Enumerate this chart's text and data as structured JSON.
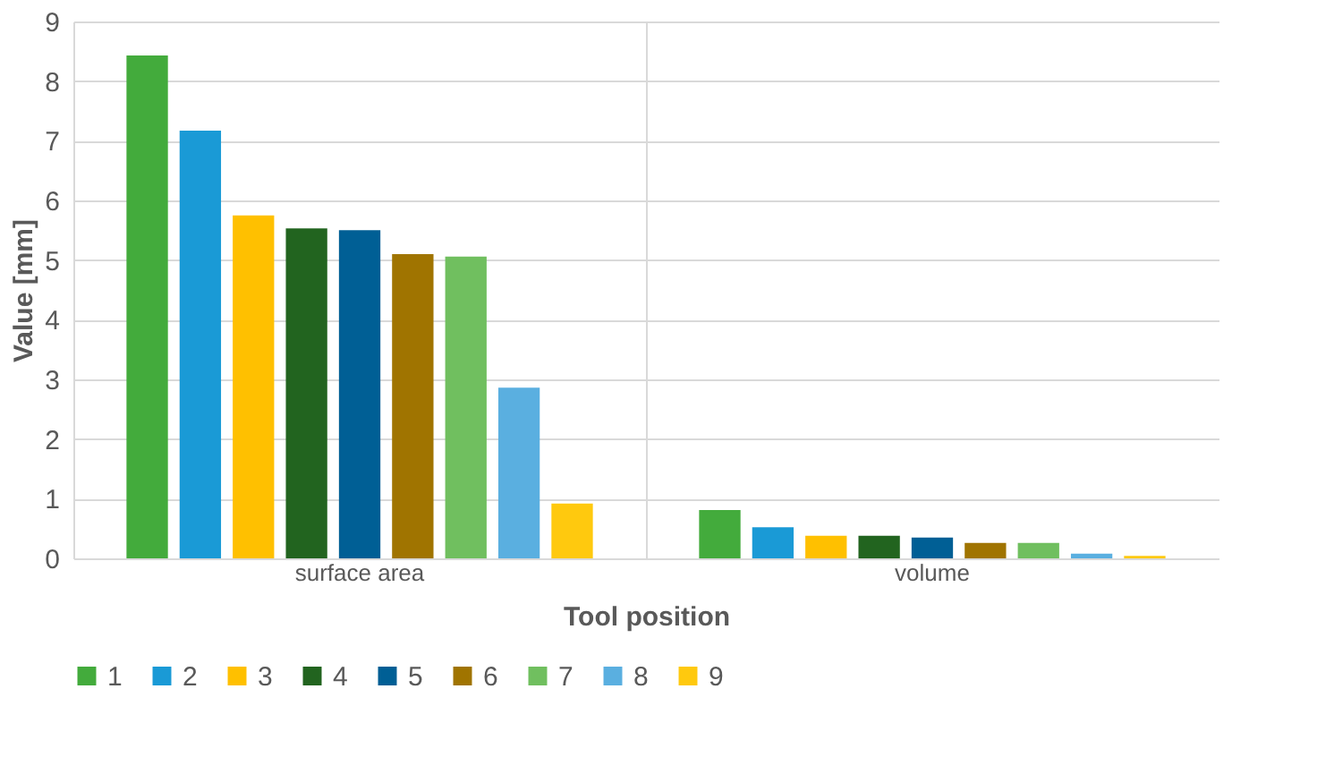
{
  "chart_data": {
    "type": "bar",
    "xlabel": "Tool position",
    "ylabel": "Value [mm]",
    "categories": [
      "surface area",
      "volume"
    ],
    "series": [
      {
        "name": "1",
        "color": "#43ab3c",
        "values": [
          8.43,
          0.81
        ]
      },
      {
        "name": "2",
        "color": "#1a9ad6",
        "values": [
          7.17,
          0.52
        ]
      },
      {
        "name": "3",
        "color": "#ffc000",
        "values": [
          5.75,
          0.38
        ]
      },
      {
        "name": "4",
        "color": "#22641f",
        "values": [
          5.53,
          0.38
        ]
      },
      {
        "name": "5",
        "color": "#005f95",
        "values": [
          5.5,
          0.35
        ]
      },
      {
        "name": "6",
        "color": "#a07400",
        "values": [
          5.1,
          0.26
        ]
      },
      {
        "name": "7",
        "color": "#70bf5f",
        "values": [
          5.06,
          0.26
        ]
      },
      {
        "name": "8",
        "color": "#5aafe0",
        "values": [
          2.86,
          0.08
        ]
      },
      {
        "name": "9",
        "color": "#ffc90e",
        "values": [
          0.92,
          0.04
        ]
      }
    ],
    "ylim": [
      0,
      9
    ],
    "yticks": [
      0,
      1,
      2,
      3,
      4,
      5,
      6,
      7,
      8,
      9
    ],
    "grid": true,
    "legend": "bottom"
  }
}
